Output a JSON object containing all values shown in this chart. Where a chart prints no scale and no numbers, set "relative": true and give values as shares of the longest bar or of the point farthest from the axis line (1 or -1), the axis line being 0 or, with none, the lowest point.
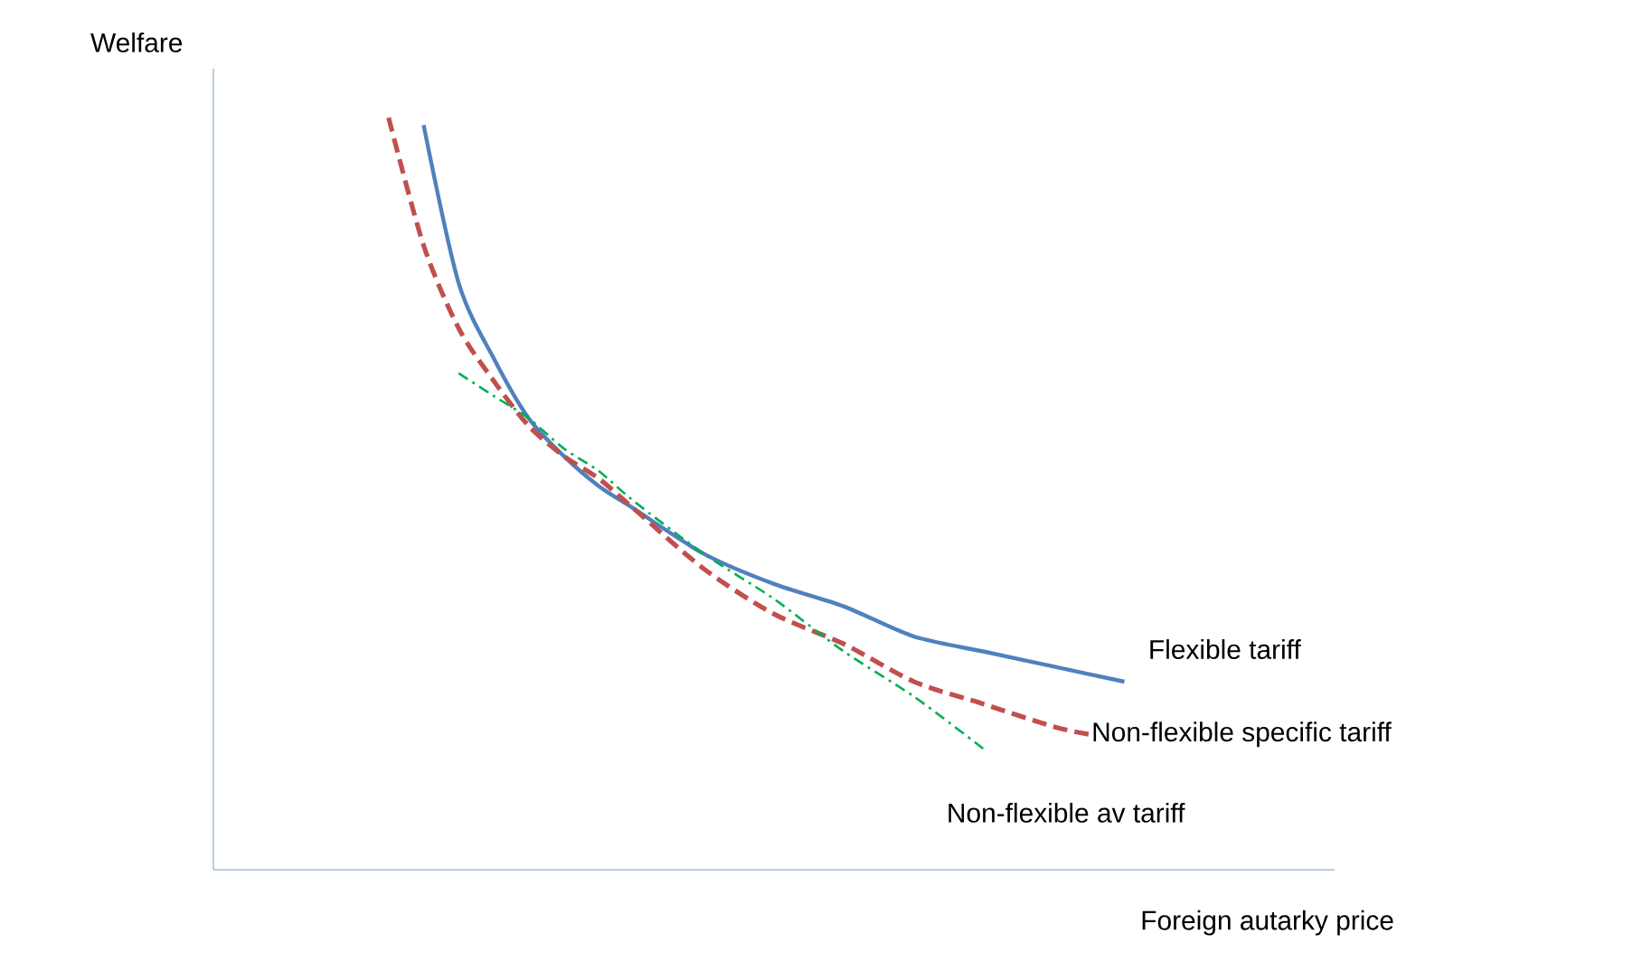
{
  "chart_data": {
    "type": "line",
    "relative": true,
    "xlabel": "Foreign autarky price",
    "ylabel": "Welfare",
    "marker": "none",
    "categories": [
      null,
      null,
      null,
      null,
      null,
      null,
      null,
      null,
      null,
      null,
      null,
      null,
      null,
      null,
      null,
      null,
      null,
      null,
      null,
      null,
      null,
      null,
      null,
      null,
      null,
      null,
      null,
      null,
      null,
      null,
      null,
      null,
      null
    ],
    "series": [
      {
        "name": "Flexible tariff",
        "color": "#4f81bd",
        "line_style": "solid",
        "values": [
          null,
          null,
          null,
          null,
          null,
          null,
          0.99,
          0.78,
          0.68,
          0.6,
          0.55,
          0.51,
          0.48,
          null,
          0.42,
          null,
          0.38,
          null,
          0.35,
          null,
          0.31,
          null,
          0.29,
          null,
          0.27,
          null,
          0.25,
          null,
          null,
          null,
          null,
          null,
          null
        ]
      },
      {
        "name": "Non-flexible specific tariff",
        "color": "#c0504d",
        "line_style": "dashed",
        "values": [
          null,
          null,
          null,
          null,
          null,
          1,
          0.83,
          0.72,
          0.65,
          0.59,
          0.55,
          0.52,
          0.48,
          null,
          0.4,
          null,
          0.34,
          null,
          0.3,
          null,
          0.25,
          null,
          0.22,
          null,
          0.19,
          0.18,
          null,
          null,
          null,
          null,
          null,
          null,
          null
        ]
      },
      {
        "name": "Non-flexible av tariff",
        "color": "#00b050",
        "line_style": "dashdot",
        "values": [
          null,
          null,
          null,
          null,
          null,
          null,
          null,
          0.66,
          0.63,
          0.6,
          0.56,
          0.53,
          0.49,
          null,
          0.42,
          null,
          0.36,
          null,
          0.29,
          null,
          0.23,
          null,
          0.16,
          null,
          null,
          null,
          null,
          null,
          null,
          null,
          null,
          null,
          null
        ]
      }
    ]
  }
}
